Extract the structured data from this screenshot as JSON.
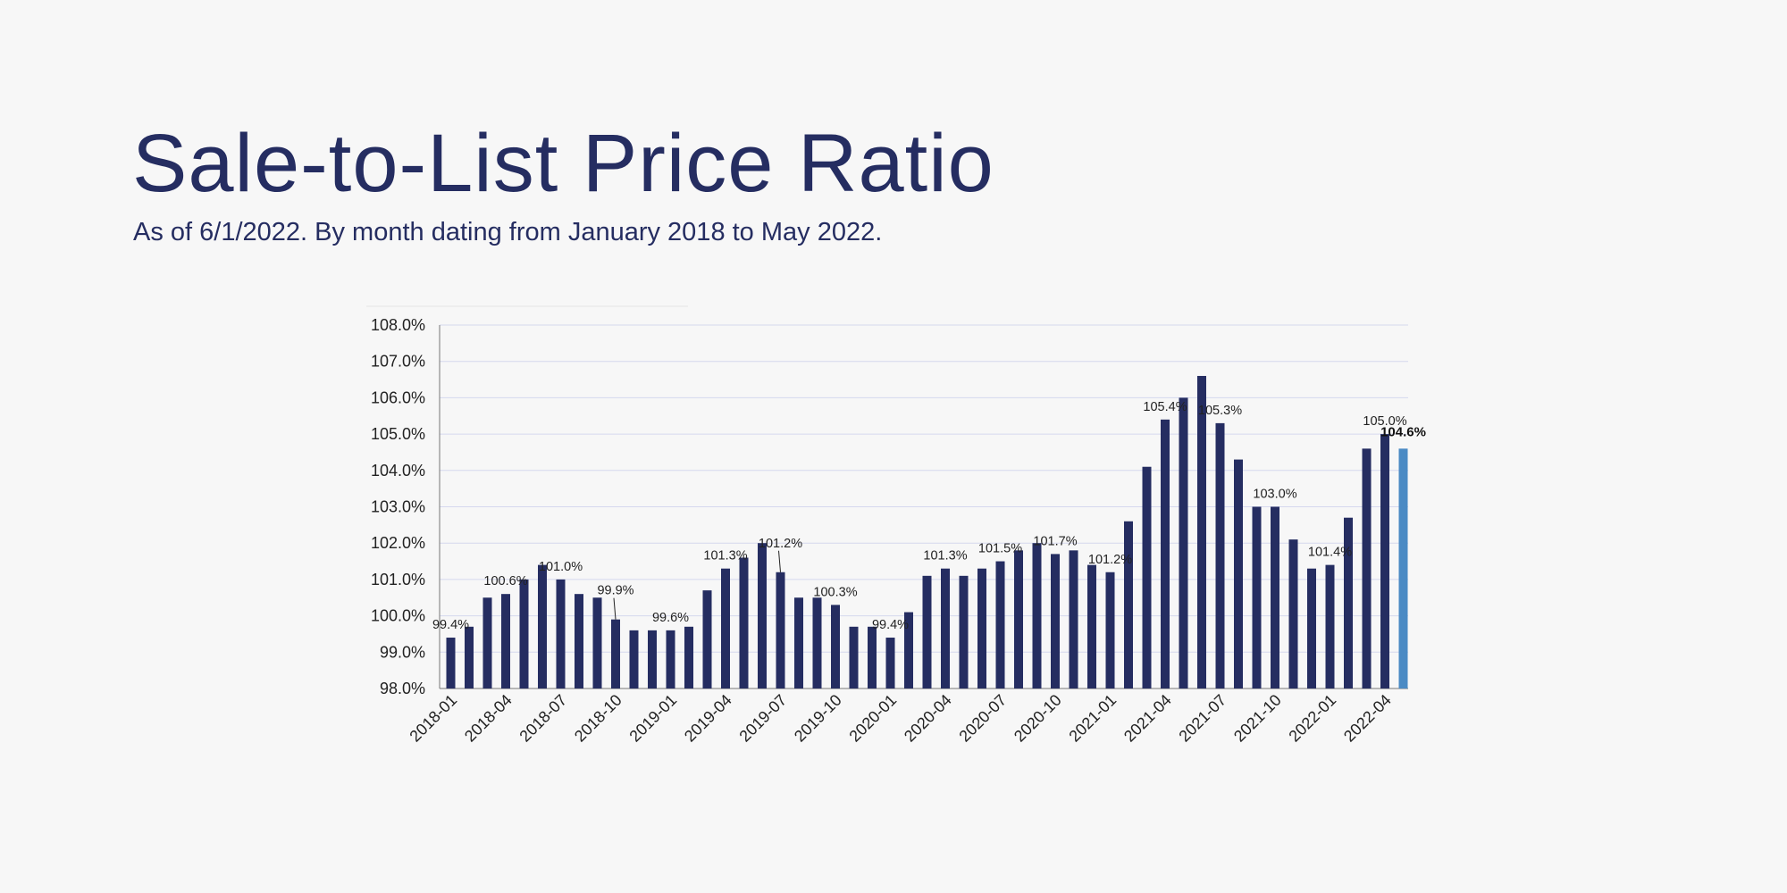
{
  "header": {
    "title": "Sale-to-List Price Ratio",
    "subtitle": "As of 6/1/2022. By month dating from January 2018 to May 2022."
  },
  "chart_data": {
    "type": "bar",
    "ylim": [
      98,
      108
    ],
    "y_ticks": [
      98,
      99,
      100,
      101,
      102,
      103,
      104,
      105,
      106,
      107,
      108
    ],
    "y_tick_labels": [
      "98.0%",
      "99.0%",
      "100.0%",
      "101.0%",
      "102.0%",
      "103.0%",
      "104.0%",
      "105.0%",
      "106.0%",
      "107.0%",
      "108.0%"
    ],
    "grid": true,
    "bar_color": "#252d61",
    "highlight_color": "#4a8ac4",
    "highlight_index": 52,
    "categories": [
      "2018-01",
      "2018-02",
      "2018-03",
      "2018-04",
      "2018-05",
      "2018-06",
      "2018-07",
      "2018-08",
      "2018-09",
      "2018-10",
      "2018-11",
      "2018-12",
      "2019-01",
      "2019-02",
      "2019-03",
      "2019-04",
      "2019-05",
      "2019-06",
      "2019-07",
      "2019-08",
      "2019-09",
      "2019-10",
      "2019-11",
      "2019-12",
      "2020-01",
      "2020-02",
      "2020-03",
      "2020-04",
      "2020-05",
      "2020-06",
      "2020-07",
      "2020-08",
      "2020-09",
      "2020-10",
      "2020-11",
      "2020-12",
      "2021-01",
      "2021-02",
      "2021-03",
      "2021-04",
      "2021-05",
      "2021-06",
      "2021-07",
      "2021-08",
      "2021-09",
      "2021-10",
      "2021-11",
      "2021-12",
      "2022-01",
      "2022-02",
      "2022-03",
      "2022-04",
      "2022-05"
    ],
    "x_tick_labels": [
      "2018-01",
      "2018-04",
      "2018-07",
      "2018-10",
      "2019-01",
      "2019-04",
      "2019-07",
      "2019-10",
      "2020-01",
      "2020-04",
      "2020-07",
      "2020-10",
      "2021-01",
      "2021-04",
      "2021-07",
      "2021-10",
      "2022-01",
      "2022-04"
    ],
    "values": [
      99.4,
      99.7,
      100.5,
      100.6,
      101.0,
      101.4,
      101.0,
      100.6,
      100.5,
      99.9,
      99.6,
      99.6,
      99.6,
      99.7,
      100.7,
      101.3,
      101.6,
      102.0,
      101.2,
      100.5,
      100.5,
      100.3,
      99.7,
      99.7,
      99.4,
      100.1,
      101.1,
      101.3,
      101.1,
      101.3,
      101.5,
      101.8,
      102.0,
      101.7,
      101.8,
      101.4,
      101.2,
      102.6,
      104.1,
      105.4,
      106.0,
      106.6,
      105.3,
      104.3,
      103.0,
      103.0,
      102.1,
      101.3,
      101.4,
      102.7,
      104.6,
      105.0,
      104.6
    ],
    "data_labels": [
      {
        "index": 0,
        "text": "99.4%"
      },
      {
        "index": 3,
        "text": "100.6%"
      },
      {
        "index": 6,
        "text": "101.0%"
      },
      {
        "index": 9,
        "text": "99.9%",
        "leader": true
      },
      {
        "index": 12,
        "text": "99.6%"
      },
      {
        "index": 15,
        "text": "101.3%"
      },
      {
        "index": 18,
        "text": "101.2%",
        "leader": true
      },
      {
        "index": 21,
        "text": "100.3%"
      },
      {
        "index": 24,
        "text": "99.4%"
      },
      {
        "index": 27,
        "text": "101.3%"
      },
      {
        "index": 30,
        "text": "101.5%"
      },
      {
        "index": 33,
        "text": "101.7%"
      },
      {
        "index": 36,
        "text": "101.2%"
      },
      {
        "index": 39,
        "text": "105.4%"
      },
      {
        "index": 42,
        "text": "105.3%"
      },
      {
        "index": 45,
        "text": "103.0%"
      },
      {
        "index": 48,
        "text": "101.4%"
      },
      {
        "index": 51,
        "text": "105.0%"
      },
      {
        "index": 52,
        "text": "104.6%",
        "highlight": true
      }
    ]
  }
}
